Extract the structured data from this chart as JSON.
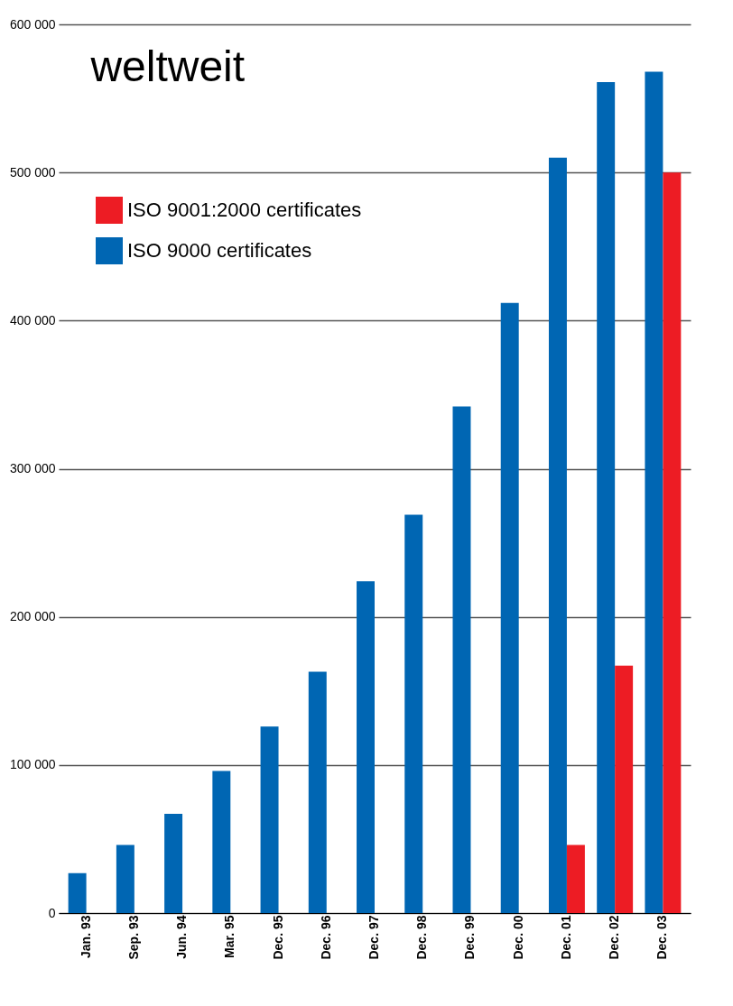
{
  "chart_data": {
    "type": "bar",
    "title": "weltweit",
    "categories": [
      "Jan. 93",
      "Sep. 93",
      "Jun. 94",
      "Mar. 95",
      "Dec. 95",
      "Dec. 96",
      "Dec. 97",
      "Dec. 98",
      "Dec. 99",
      "Dec. 00",
      "Dec. 01",
      "Dec. 02",
      "Dec. 03"
    ],
    "series": [
      {
        "name": "ISO 9000 certificates",
        "color": "#0066b3",
        "values": [
          27000,
          46000,
          67000,
          96000,
          126000,
          163000,
          224000,
          269000,
          342000,
          412000,
          510000,
          561000,
          568000
        ]
      },
      {
        "name": "ISO 9001:2000 certificates",
        "color": "#ed1c24",
        "values": [
          null,
          null,
          null,
          null,
          null,
          null,
          null,
          null,
          null,
          null,
          46000,
          167000,
          500000
        ]
      }
    ],
    "ylim": [
      0,
      600000
    ],
    "yticks": [
      0,
      {
        "value": 100000,
        "label": "100 000"
      },
      {
        "value": 200000,
        "label": "200 000"
      },
      {
        "value": 300000,
        "label": "300 000"
      },
      {
        "value": 400000,
        "label": "400 000"
      },
      {
        "value": 500000,
        "label": "500 000"
      },
      {
        "value": 600000,
        "label": "600 000"
      }
    ],
    "grid": "y",
    "legend": "top left"
  }
}
